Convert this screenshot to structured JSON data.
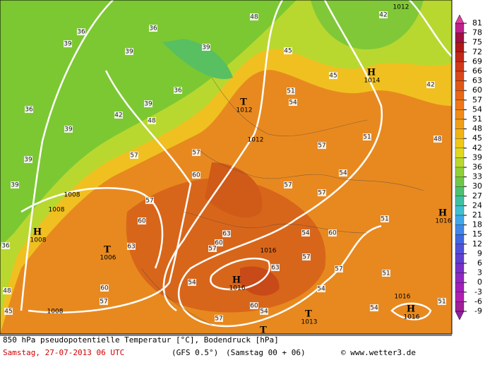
{
  "legend": {
    "ticks": [
      81,
      78,
      75,
      72,
      69,
      66,
      63,
      60,
      57,
      54,
      51,
      48,
      45,
      42,
      39,
      36,
      33,
      30,
      27,
      24,
      21,
      18,
      15,
      12,
      9,
      6,
      3,
      0,
      -3,
      -6,
      -9
    ]
  },
  "footer": {
    "title": "850 hPa pseudopotentielle Temperatur [°C], Bodendruck [hPa]",
    "date": "Samstag, 27-07-2013  06 UTC",
    "model": "(GFS 0.5°)",
    "run": "(Samstag 00 + 06)",
    "credit": "© www.wetter3.de"
  },
  "pressure_systems": [
    {
      "label": "H",
      "value": 1014
    },
    {
      "label": "T",
      "value": 1012
    },
    {
      "label": "H",
      "value": 1016
    },
    {
      "label": "H",
      "value": 1008
    },
    {
      "label": "T",
      "value": 1006
    },
    {
      "label": "H",
      "value": 1016
    },
    {
      "label": "T",
      "value": 1013
    },
    {
      "label": "H",
      "value": 1016
    },
    {
      "label": "T",
      "value": null
    }
  ],
  "isobar_labels": [
    1012,
    1012,
    1008,
    1008,
    1008,
    1016,
    1016
  ],
  "contour_labels": [
    36,
    36,
    39,
    39,
    39,
    36,
    39,
    36,
    39,
    42,
    48,
    39,
    39,
    45,
    45,
    51,
    54,
    42,
    57,
    51,
    54,
    57,
    57,
    48,
    57,
    57,
    60,
    57,
    60,
    63,
    63,
    60,
    57,
    54,
    60,
    51,
    57,
    57,
    54,
    63,
    57,
    60,
    60,
    54,
    54,
    51,
    45,
    48,
    36,
    57,
    54,
    51,
    42,
    48
  ]
}
